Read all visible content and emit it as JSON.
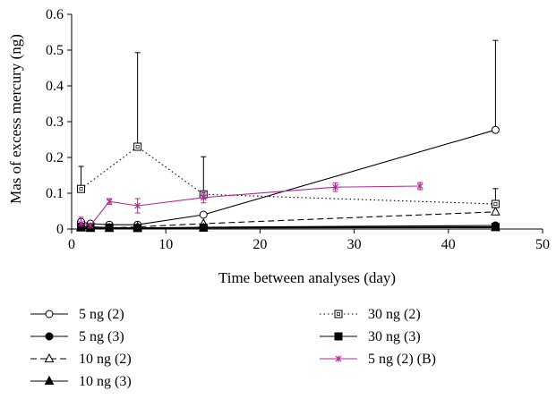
{
  "chart_data": {
    "type": "line",
    "title": "",
    "xlabel": "Time between analyses (day)",
    "ylabel": "Mas of excess mercury (ng)",
    "xlim": [
      0,
      50
    ],
    "ylim": [
      0,
      0.6
    ],
    "xticks": [
      "0",
      "10",
      "20",
      "30",
      "40",
      "50"
    ],
    "yticks": [
      "0",
      "0.1",
      "0.2",
      "0.3",
      "0.4",
      "0.5",
      "0.6"
    ],
    "grid": false,
    "legend_position": "bottom",
    "series": [
      {
        "name": "5 ng (2)",
        "marker": "circle-open",
        "line": "solid",
        "color": "#000000",
        "x": [
          1,
          2,
          4,
          7,
          14,
          45
        ],
        "y": [
          0.02,
          0.015,
          0.012,
          0.012,
          0.04,
          0.277
        ],
        "err_up": [
          0.005,
          0.0,
          0.0,
          0.0,
          0.0,
          0.25
        ]
      },
      {
        "name": "5 ng (3)",
        "marker": "circle-filled",
        "line": "solid",
        "color": "#000000",
        "x": [
          1,
          2,
          4,
          7,
          14,
          45
        ],
        "y": [
          0.008,
          0.006,
          0.004,
          0.003,
          0.005,
          0.01
        ],
        "err_up": [
          0.0,
          0.0,
          0.0,
          0.0,
          0.0,
          0.0
        ]
      },
      {
        "name": "10 ng (2)",
        "marker": "triangle-open",
        "line": "dashed",
        "color": "#000000",
        "x": [
          1,
          2,
          4,
          7,
          14,
          45
        ],
        "y": [
          0.005,
          0.004,
          0.003,
          0.006,
          0.015,
          0.048
        ],
        "err_up": [
          0.0,
          0.0,
          0.0,
          0.0,
          0.0,
          0.0
        ]
      },
      {
        "name": "10 ng (3)",
        "marker": "triangle-filled",
        "line": "solid",
        "color": "#000000",
        "x": [
          1,
          2,
          4,
          7,
          14,
          45
        ],
        "y": [
          0.003,
          0.002,
          0.002,
          0.002,
          0.003,
          0.004
        ],
        "err_up": [
          0.0,
          0.0,
          0.0,
          0.0,
          0.0,
          0.0
        ]
      },
      {
        "name": "30 ng (2)",
        "marker": "square-open",
        "line": "dotted",
        "color": "#000000",
        "x": [
          1,
          7,
          14,
          45
        ],
        "y": [
          0.112,
          0.23,
          0.097,
          0.07
        ],
        "err_up": [
          0.063,
          0.263,
          0.105,
          0.043
        ]
      },
      {
        "name": "30 ng (3)",
        "marker": "square-filled",
        "line": "solid",
        "color": "#000000",
        "x": [
          1,
          2,
          4,
          7,
          14,
          45
        ],
        "y": [
          0.006,
          0.005,
          0.004,
          0.003,
          0.004,
          0.006
        ],
        "err_up": [
          0.0,
          0.0,
          0.0,
          0.0,
          0.0,
          0.0
        ]
      },
      {
        "name": "5 ng (2) (B)",
        "marker": "star",
        "line": "solid",
        "color": "#b5279a",
        "x": [
          1,
          2,
          4,
          7,
          14,
          28,
          37
        ],
        "y": [
          0.015,
          0.01,
          0.077,
          0.065,
          0.088,
          0.117,
          0.12
        ],
        "err_up": [
          0.018,
          0.0,
          0.008,
          0.02,
          0.015,
          0.012,
          0.01
        ],
        "err_down": [
          0.0,
          0.0,
          0.008,
          0.02,
          0.015,
          0.012,
          0.01
        ]
      }
    ]
  }
}
